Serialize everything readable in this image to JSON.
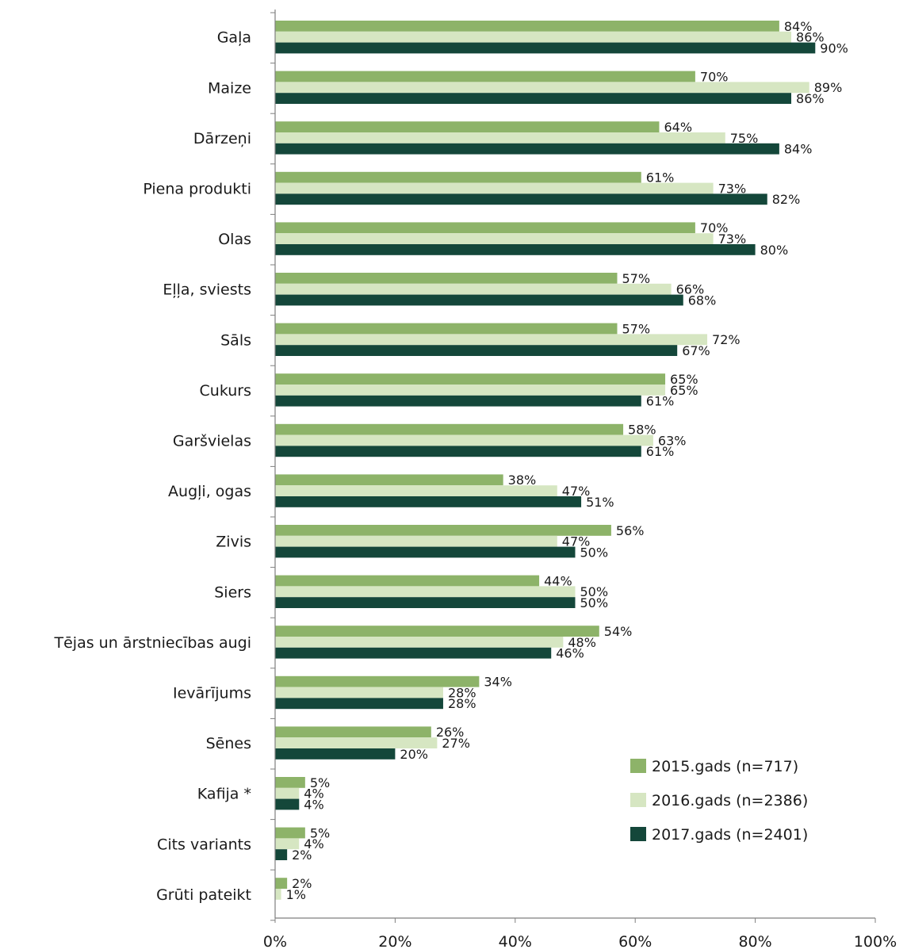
{
  "chart_data": {
    "type": "bar",
    "orientation": "horizontal",
    "categories": [
      "Gaļa",
      "Maize",
      "Dārzeņi",
      "Piena produkti",
      "Olas",
      "Eļļa, sviests",
      "Sāls",
      "Cukurs",
      "Garšvielas",
      "Augļi, ogas",
      "Zivis",
      "Siers",
      "Tējas un ārstniecības augi",
      "Ievārījums",
      "Sēnes",
      "Kafija *",
      "Cits variants",
      "Grūti pateikt"
    ],
    "series": [
      {
        "name": "2015.gads (n=717)",
        "color": "#8db369",
        "values": [
          84,
          70,
          64,
          61,
          70,
          57,
          57,
          65,
          58,
          38,
          56,
          44,
          54,
          34,
          26,
          5,
          5,
          2
        ]
      },
      {
        "name": "2016.gads (n=2386)",
        "color": "#d6e6c2",
        "values": [
          86,
          89,
          75,
          73,
          73,
          66,
          72,
          65,
          63,
          47,
          47,
          50,
          48,
          28,
          27,
          4,
          4,
          1
        ]
      },
      {
        "name": "2017.gads (n=2401)",
        "color": "#14473a",
        "values": [
          90,
          86,
          84,
          82,
          80,
          68,
          67,
          61,
          61,
          51,
          50,
          50,
          46,
          28,
          20,
          4,
          2,
          null
        ]
      }
    ],
    "xlim": [
      0,
      100
    ],
    "xticks": [
      "0%",
      "20%",
      "40%",
      "60%",
      "80%",
      "100%"
    ],
    "value_suffix": "%",
    "legend_position": "bottom-right",
    "grid": false
  }
}
